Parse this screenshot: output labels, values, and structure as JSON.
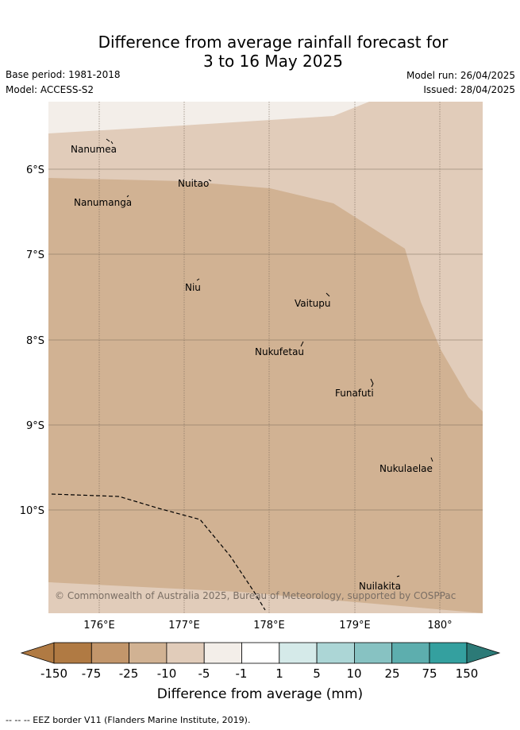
{
  "title_line1": "Difference from average rainfall forecast for",
  "title_line2": "3 to 16 May 2025",
  "base_period": "Base period: 1981-2018",
  "model": "Model: ACCESS-S2",
  "model_run": "Model run: 26/04/2025",
  "issued": "Issued: 28/04/2025",
  "copyright": "© Commonwealth of Australia 2025, Bureau of Meteorology, supported by COSPPac",
  "latitudes": [
    "6°S",
    "7°S",
    "8°S",
    "9°S",
    "10°S"
  ],
  "longitudes": [
    "176°E",
    "177°E",
    "178°E",
    "179°E",
    "180°"
  ],
  "places": [
    "Nanumea",
    "Nuitao",
    "Nanumanga",
    "Niu",
    "Vaitupu",
    "Nukufetau",
    "Funafuti",
    "Nukulaelae",
    "Nuilakita"
  ],
  "colorbar": {
    "title": "Difference from average (mm)",
    "ticks": [
      "-150",
      "-75",
      "-25",
      "-10",
      "-5",
      "-1",
      "1",
      "5",
      "10",
      "25",
      "75",
      "150"
    ],
    "colors": [
      "#b07a43",
      "#c2966b",
      "#d1b293",
      "#e1ccba",
      "#f3eee9",
      "#ffffff",
      "#d5eae9",
      "#acd6d6",
      "#87c2c2",
      "#5daeae",
      "#34a09f",
      "#2c7a77"
    ]
  },
  "legend_note": "--  --  -- EEZ border V11 (Flanders Marine Institute, 2019)."
}
